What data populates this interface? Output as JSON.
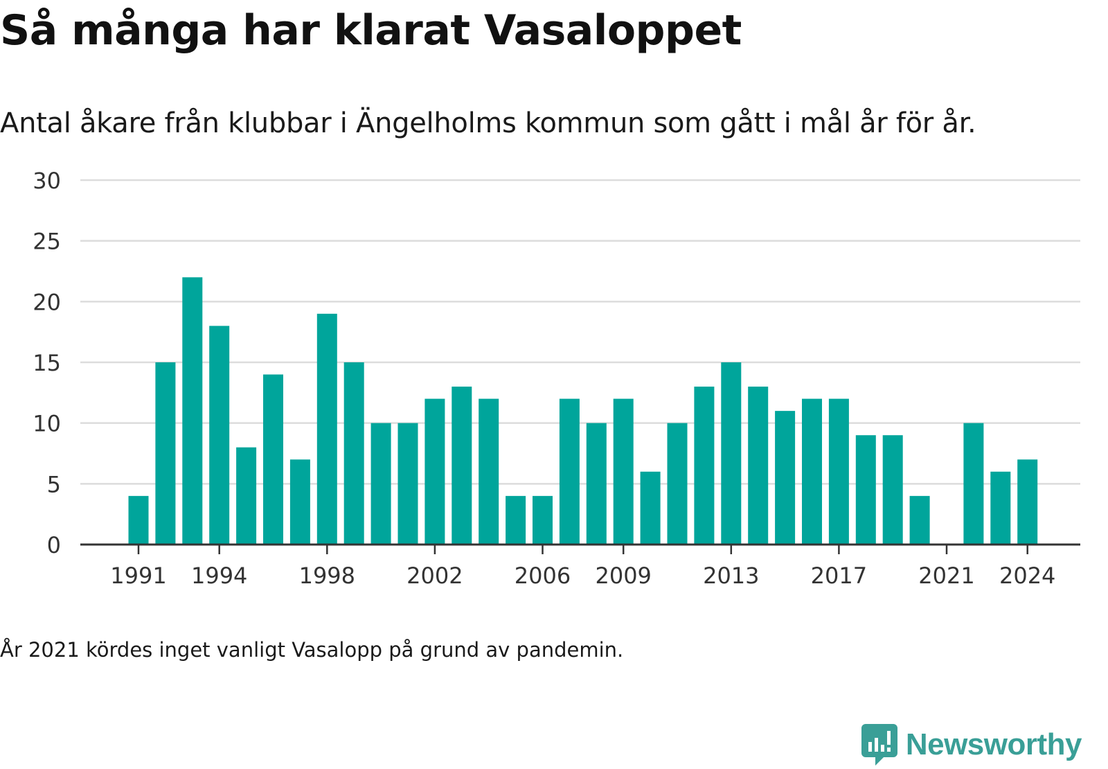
{
  "title": "Så många har klarat Vasaloppet",
  "subtitle": "Antal åkare från klubbar i Ängelholms kommun som gått i mål år för år.",
  "note": "År 2021 kördes inget vanligt Vasalopp på grund av pandemin.",
  "brand": {
    "name": "Newsworthy",
    "icon": "newsworthy-logo-icon"
  },
  "colors": {
    "bar": "#00a59b",
    "grid": "#dcdcdc",
    "axis": "#333333",
    "brand": "#3a9f97"
  },
  "chart_data": {
    "type": "bar",
    "title": "Så många har klarat Vasaloppet",
    "subtitle": "Antal åkare från klubbar i Ängelholms kommun som gått i mål år för år.",
    "xlabel": "",
    "ylabel": "",
    "ylim": [
      0,
      30
    ],
    "yticks": [
      0,
      5,
      10,
      15,
      20,
      25,
      30
    ],
    "xticks": [
      1991,
      1994,
      1998,
      2002,
      2006,
      2009,
      2013,
      2017,
      2021,
      2024
    ],
    "grid": true,
    "legend": "none",
    "categories": [
      1991,
      1992,
      1993,
      1994,
      1995,
      1996,
      1997,
      1998,
      1999,
      2000,
      2001,
      2002,
      2003,
      2004,
      2005,
      2006,
      2007,
      2008,
      2009,
      2010,
      2011,
      2012,
      2013,
      2014,
      2015,
      2016,
      2017,
      2018,
      2019,
      2020,
      2021,
      2022,
      2023,
      2024
    ],
    "values": [
      4,
      15,
      22,
      18,
      8,
      14,
      7,
      19,
      15,
      10,
      10,
      12,
      13,
      12,
      4,
      4,
      12,
      10,
      12,
      6,
      10,
      13,
      15,
      13,
      11,
      12,
      12,
      9,
      9,
      4,
      0,
      10,
      6,
      7
    ]
  }
}
